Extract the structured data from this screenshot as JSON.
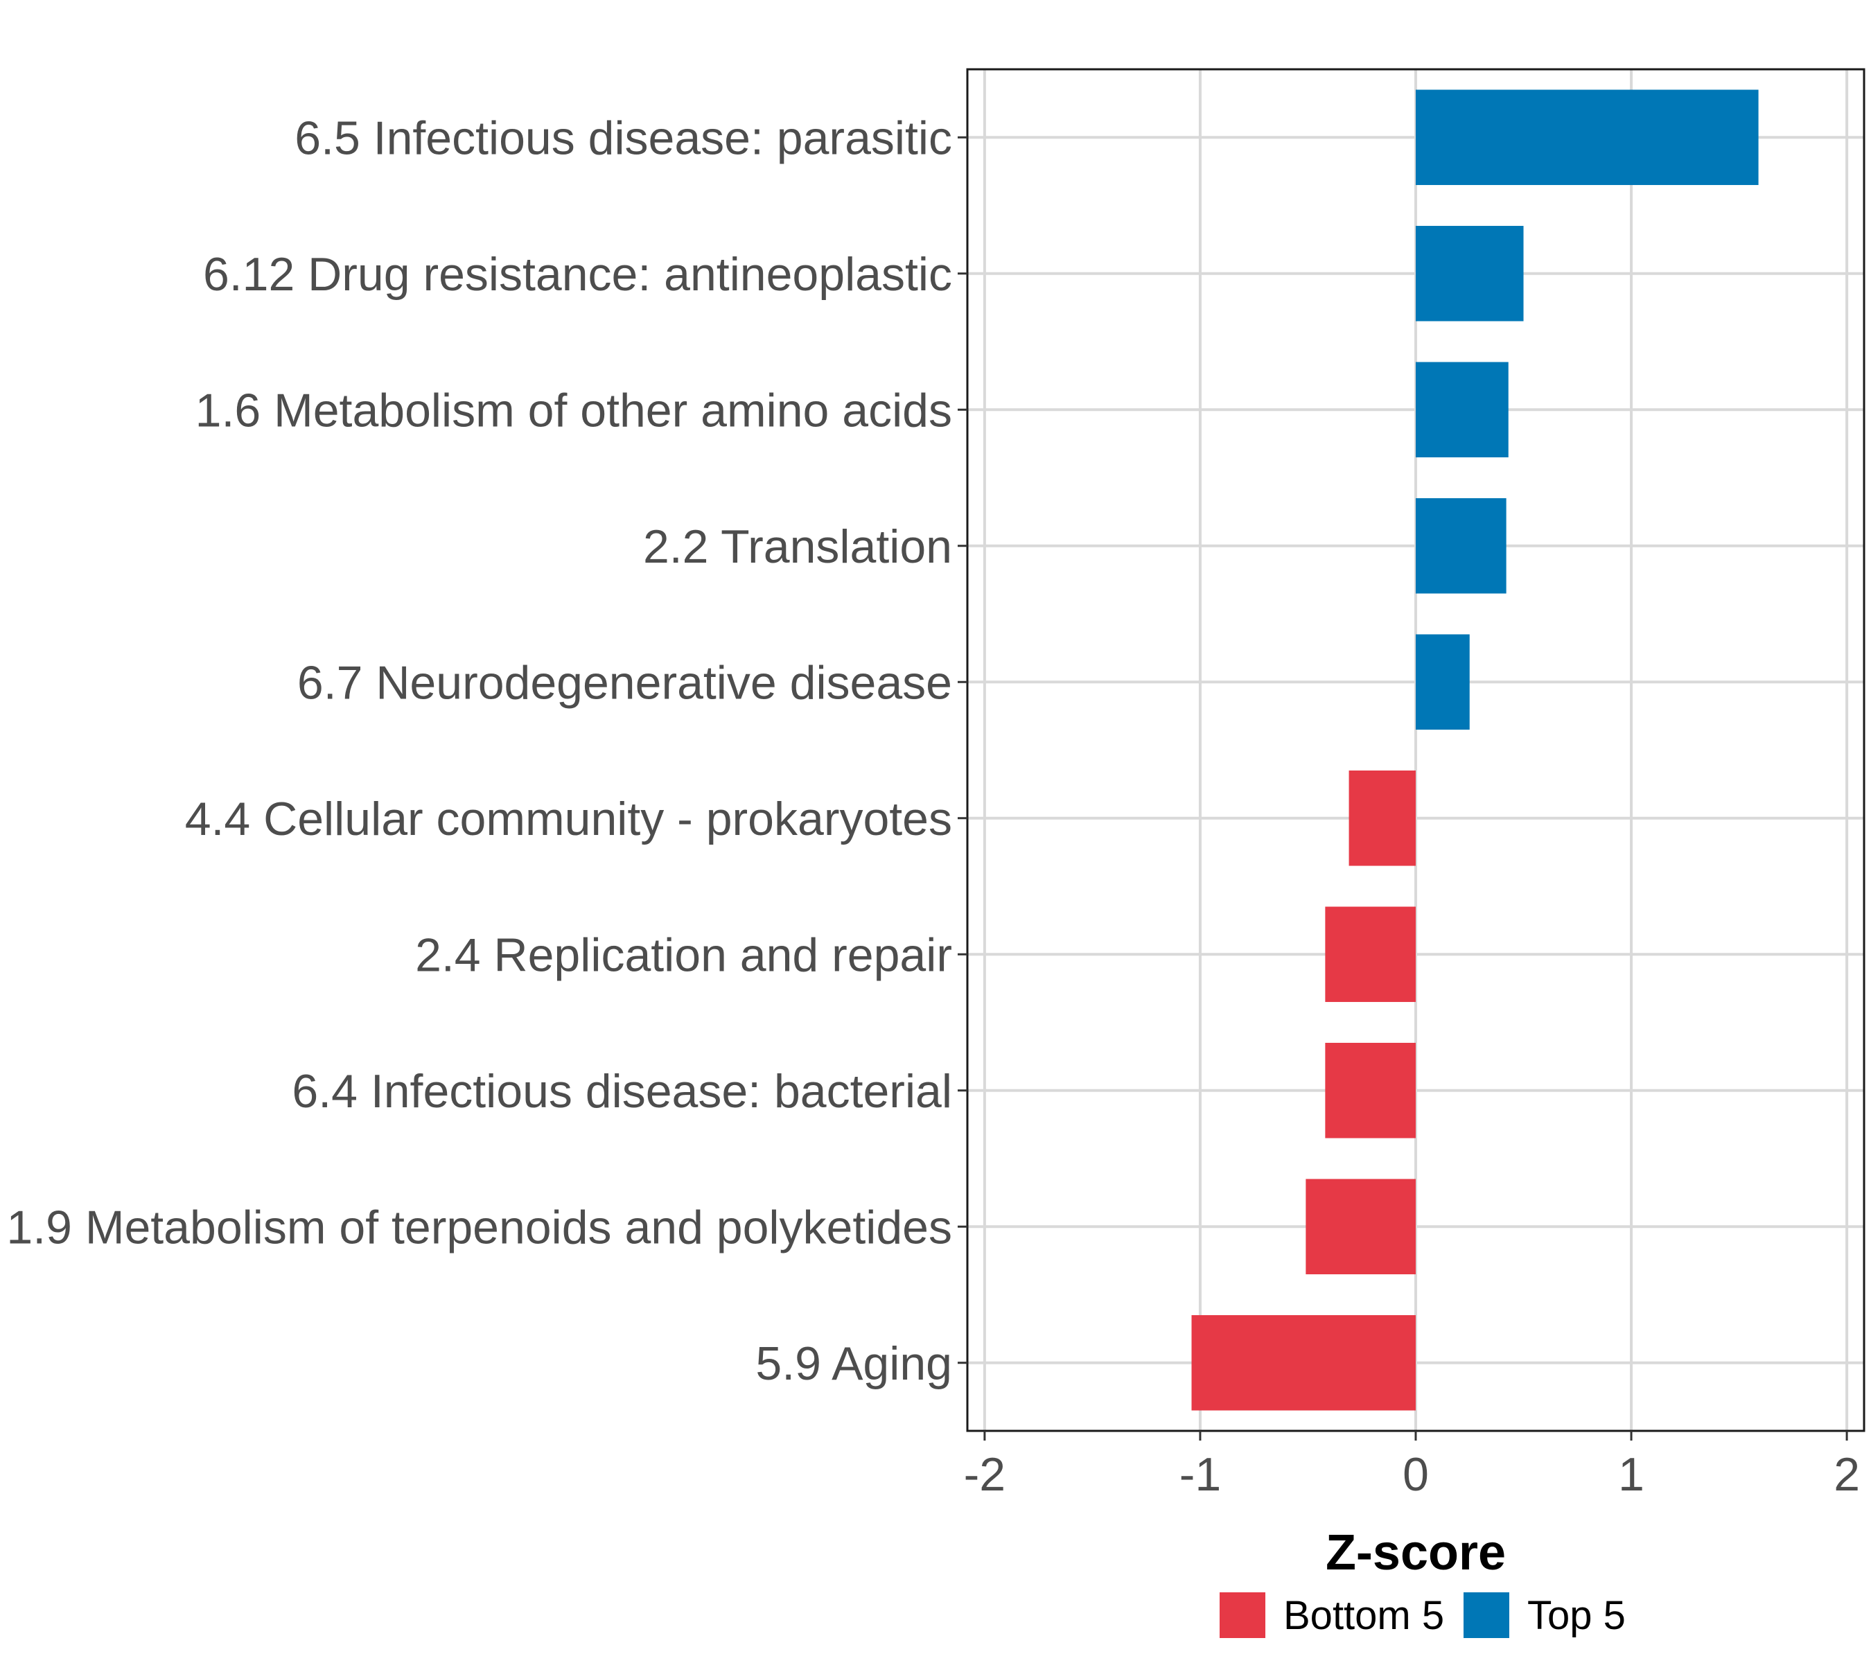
{
  "chart_data": {
    "type": "bar",
    "orientation": "horizontal",
    "categories": [
      "6.5 Infectious disease: parasitic",
      "6.12 Drug resistance: antineoplastic",
      "1.6 Metabolism of other amino acids",
      "2.2 Translation",
      "6.7 Neurodegenerative disease",
      "4.4 Cellular community - prokaryotes",
      "2.4 Replication and repair",
      "6.4 Infectious disease: bacterial",
      "1.9 Metabolism of terpenoids and polyketides",
      "5.9 Aging"
    ],
    "values": [
      1.59,
      0.5,
      0.43,
      0.42,
      0.25,
      -0.31,
      -0.42,
      -0.42,
      -0.51,
      -1.04
    ],
    "groups": [
      "Top 5",
      "Top 5",
      "Top 5",
      "Top 5",
      "Top 5",
      "Bottom 5",
      "Bottom 5",
      "Bottom 5",
      "Bottom 5",
      "Bottom 5"
    ],
    "title": "",
    "xlabel": "Z-score",
    "ylabel": "",
    "xlim": [
      -2.08,
      2.08
    ],
    "xticks": [
      -2,
      -1,
      0,
      1,
      2
    ],
    "xtick_labels": [
      "-2",
      "-1",
      "0",
      "1",
      "2"
    ],
    "grid": true,
    "legend": {
      "position": "bottom",
      "entries": [
        {
          "label": "Bottom 5",
          "color": "#e63946"
        },
        {
          "label": "Top 5",
          "color": "#0077b6"
        }
      ]
    },
    "colors": {
      "Top 5": "#0077b6",
      "Bottom 5": "#e63946"
    }
  }
}
